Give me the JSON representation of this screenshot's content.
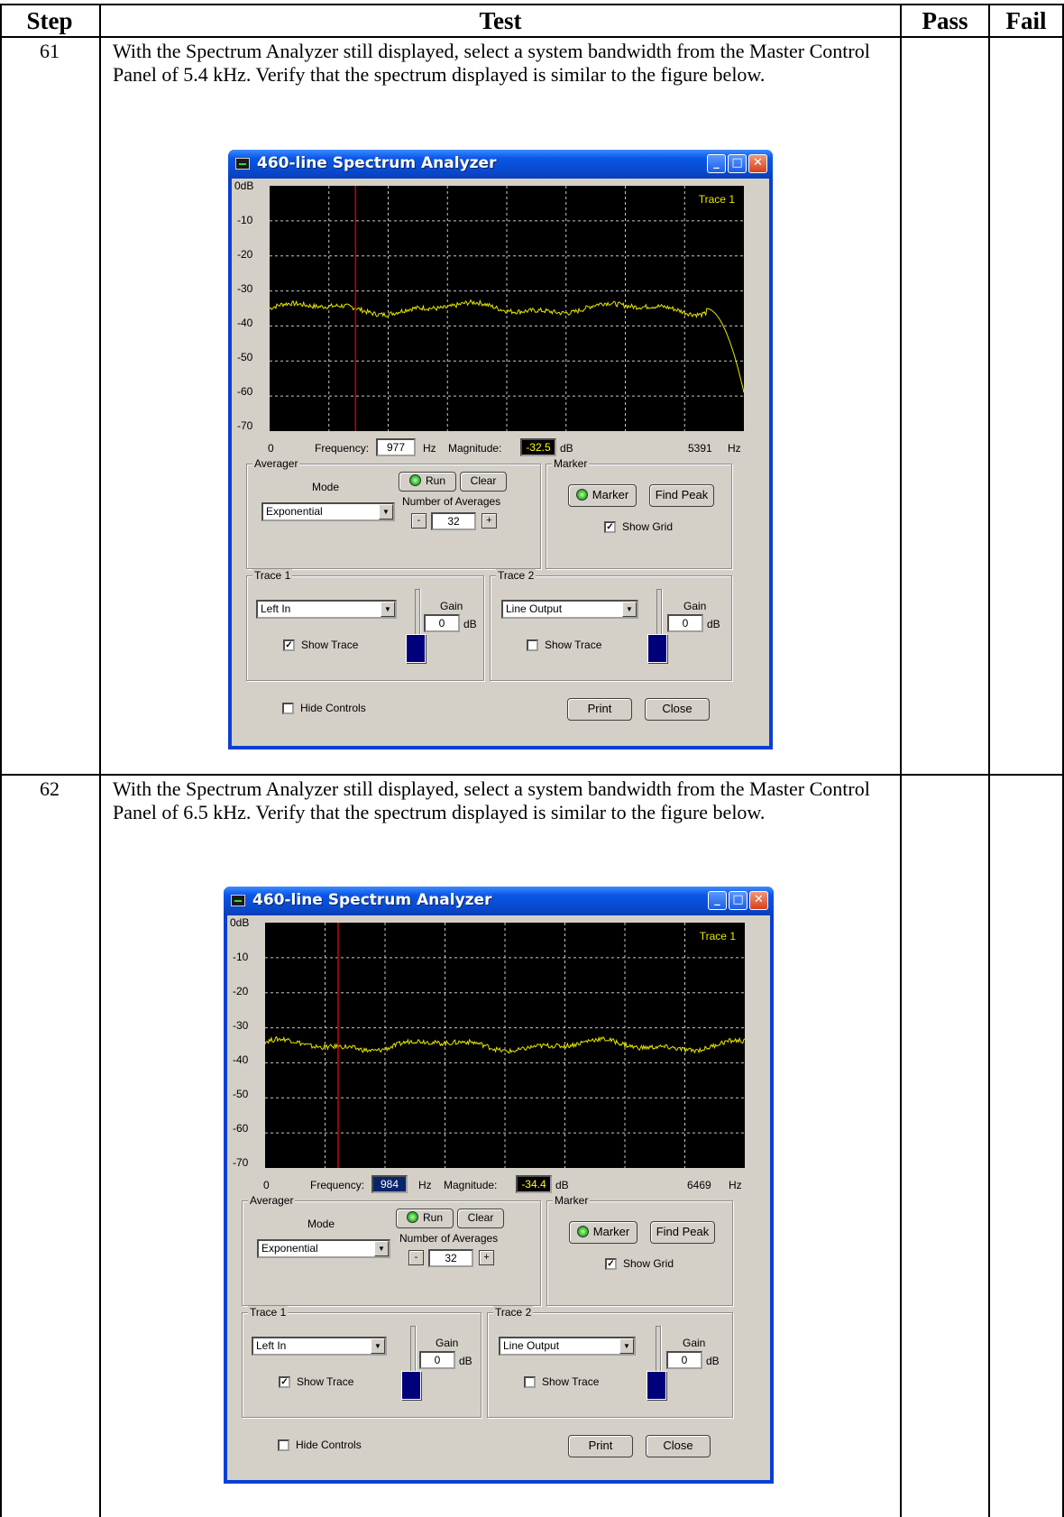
{
  "table": {
    "headers": {
      "step": "Step",
      "test": "Test",
      "pass": "Pass",
      "fail": "Fail"
    },
    "rows": [
      {
        "step": "61",
        "text": "With the Spectrum Analyzer still displayed, select a system bandwidth from the Master Control Panel of 5.4 kHz.  Verify that the spectrum displayed is similar to the figure below.",
        "window": {
          "title": "460-line Spectrum Analyzer",
          "trace_label": "Trace 1",
          "db_labels": [
            "0dB",
            "-10",
            "-20",
            "-30",
            "-40",
            "-50",
            "-60",
            "-70"
          ],
          "freq_start": "0",
          "frequency_label": "Frequency:",
          "frequency_value": "977",
          "hz": "Hz",
          "magnitude_label": "Magnitude:",
          "magnitude_value": "-32.5",
          "db_unit": "dB",
          "freq_end": "5391",
          "averager": {
            "title": "Averager",
            "mode_label": "Mode",
            "mode_value": "Exponential",
            "run": "Run",
            "clear": "Clear",
            "num_label": "Number of Averages",
            "minus": "-",
            "num_value": "32",
            "plus": "+"
          },
          "marker": {
            "title": "Marker",
            "marker_button": "Marker",
            "find_peak": "Find Peak",
            "show_grid": "Show Grid"
          },
          "trace1": {
            "title": "Trace 1",
            "source": "Left In",
            "gain_label": "Gain",
            "gain_value": "0",
            "gain_unit": "dB",
            "show_trace": "Show Trace",
            "show_trace_checked": true
          },
          "trace2": {
            "title": "Trace 2",
            "source": "Line Output",
            "gain_label": "Gain",
            "gain_value": "0",
            "gain_unit": "dB",
            "show_trace": "Show Trace",
            "show_trace_checked": false
          },
          "hide_controls": "Hide Controls",
          "print": "Print",
          "close": "Close",
          "marker_frequency_hz": 977,
          "max_frequency_hz": 5391,
          "spectrum": {
            "level_db": -35,
            "rolloff_start_fraction": 0.92,
            "end_level_db": -59
          }
        }
      },
      {
        "step": "62",
        "text": "With the Spectrum Analyzer still displayed, select a system bandwidth from the Master Control Panel of 6.5 kHz.  Verify that the spectrum displayed is similar to the figure below.",
        "window": {
          "title": "460-line Spectrum Analyzer",
          "trace_label": "Trace 1",
          "db_labels": [
            "0dB",
            "-10",
            "-20",
            "-30",
            "-40",
            "-50",
            "-60",
            "-70"
          ],
          "freq_start": "0",
          "frequency_label": "Frequency:",
          "frequency_value": "984",
          "hz": "Hz",
          "magnitude_label": "Magnitude:",
          "magnitude_value": "-34.4",
          "db_unit": "dB",
          "freq_end": "6469",
          "averager": {
            "title": "Averager",
            "mode_label": "Mode",
            "mode_value": "Exponential",
            "run": "Run",
            "clear": "Clear",
            "num_label": "Number of Averages",
            "minus": "-",
            "num_value": "32",
            "plus": "+"
          },
          "marker": {
            "title": "Marker",
            "marker_button": "Marker",
            "find_peak": "Find Peak",
            "show_grid": "Show Grid"
          },
          "trace1": {
            "title": "Trace 1",
            "source": "Left In",
            "gain_label": "Gain",
            "gain_value": "0",
            "gain_unit": "dB",
            "show_trace": "Show Trace",
            "show_trace_checked": true
          },
          "trace2": {
            "title": "Trace 2",
            "source": "Line Output",
            "gain_label": "Gain",
            "gain_value": "0",
            "gain_unit": "dB",
            "show_trace": "Show Trace",
            "show_trace_checked": false
          },
          "hide_controls": "Hide Controls",
          "print": "Print",
          "close": "Close",
          "marker_frequency_hz": 984,
          "max_frequency_hz": 6469,
          "spectrum": {
            "level_db": -35,
            "rolloff_start_fraction": 1.0,
            "end_level_db": -34
          }
        }
      }
    ]
  },
  "colors": {
    "trace": "#e6e600",
    "marker_line": "#d00000",
    "grid": "#c8c8c8"
  }
}
